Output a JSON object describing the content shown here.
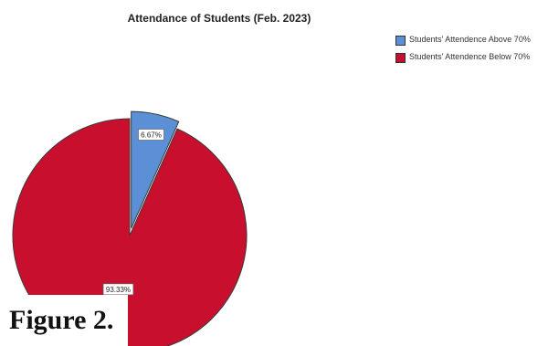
{
  "chart_data": {
    "type": "pie",
    "title": "Attendance of Students (Feb. 2023)",
    "exploded": true,
    "slices": [
      {
        "label": "Students' Attendence Above 70%",
        "value": 6.67,
        "data_label": "6.67%",
        "color": "#5b8fd6"
      },
      {
        "label": "Students' Attendence Below 70%",
        "value": 93.33,
        "data_label": "93.33%",
        "color": "#c8102e"
      }
    ],
    "legend_position": "top-right"
  },
  "caption": "Figure 2."
}
